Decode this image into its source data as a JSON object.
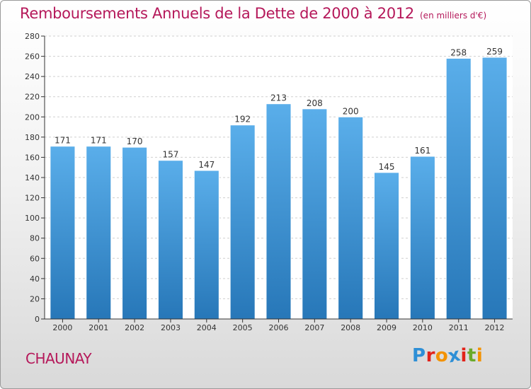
{
  "header": {
    "title": "Remboursements Annuels de la Dette de 2000 à 2012",
    "subtitle": "(en milliers d'€)"
  },
  "footer": {
    "city": "CHAUNAY",
    "logo_letters": [
      "P",
      "r",
      "o",
      "x",
      "i",
      "t",
      "i"
    ],
    "logo_colors": [
      "#2e8fd6",
      "#e2231a",
      "#f39200",
      "#2e8fd6",
      "#e2231a",
      "#6aaa2a",
      "#f39200"
    ]
  },
  "chart_data": {
    "type": "bar",
    "categories": [
      "2000",
      "2001",
      "2002",
      "2003",
      "2004",
      "2005",
      "2006",
      "2007",
      "2008",
      "2009",
      "2010",
      "2011",
      "2012"
    ],
    "values": [
      171,
      171,
      170,
      157,
      147,
      192,
      213,
      208,
      200,
      145,
      161,
      258,
      259
    ],
    "title": "Remboursements Annuels de la Dette de 2000 à 2012",
    "subtitle": "(en milliers d'€)",
    "ylim": [
      0,
      280
    ],
    "yticks": [
      0,
      20,
      40,
      60,
      80,
      100,
      120,
      140,
      160,
      180,
      200,
      220,
      240,
      260,
      280
    ],
    "grid": true,
    "bar_color_top": "#5aaeea",
    "bar_color_bottom": "#2777b8"
  }
}
